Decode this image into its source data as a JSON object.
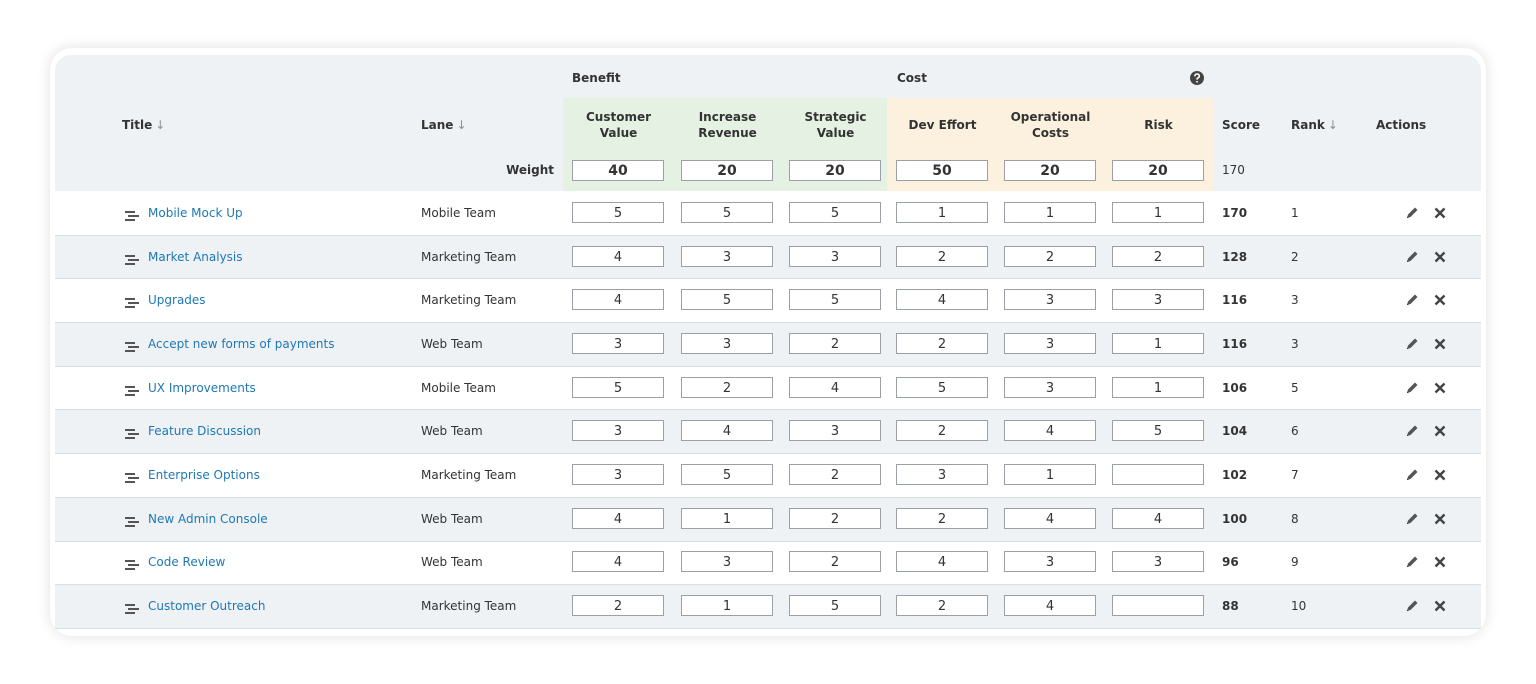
{
  "header": {
    "benefit": "Benefit",
    "cost": "Cost",
    "weight_label": "Weight"
  },
  "columns": {
    "title": "Title",
    "lane": "Lane",
    "criteria": [
      "Customer Value",
      "Increase Revenue",
      "Strategic Value",
      "Dev Effort",
      "Operational Costs",
      "Risk"
    ],
    "score": "Score",
    "rank": "Rank",
    "actions": "Actions"
  },
  "weights": [
    40,
    20,
    20,
    50,
    20,
    20
  ],
  "total_weight": 170,
  "rows": [
    {
      "title": "Mobile Mock Up",
      "lane": "Mobile Team",
      "scores": [
        5,
        5,
        5,
        1,
        1,
        1
      ],
      "score": 170,
      "rank": 1
    },
    {
      "title": "Market Analysis",
      "lane": "Marketing Team",
      "scores": [
        4,
        3,
        3,
        2,
        2,
        2
      ],
      "score": 128,
      "rank": 2
    },
    {
      "title": "Upgrades",
      "lane": "Marketing Team",
      "scores": [
        4,
        5,
        5,
        4,
        3,
        3
      ],
      "score": 116,
      "rank": 3
    },
    {
      "title": "Accept new forms of payments",
      "lane": "Web Team",
      "scores": [
        3,
        3,
        2,
        2,
        3,
        1
      ],
      "score": 116,
      "rank": 3
    },
    {
      "title": "UX Improvements",
      "lane": "Mobile Team",
      "scores": [
        5,
        2,
        4,
        5,
        3,
        1
      ],
      "score": 106,
      "rank": 5
    },
    {
      "title": "Feature Discussion",
      "lane": "Web Team",
      "scores": [
        3,
        4,
        3,
        2,
        4,
        5
      ],
      "score": 104,
      "rank": 6
    },
    {
      "title": "Enterprise Options",
      "lane": "Marketing Team",
      "scores": [
        3,
        5,
        2,
        3,
        1,
        null
      ],
      "score": 102,
      "rank": 7
    },
    {
      "title": "New Admin Console",
      "lane": "Web Team",
      "scores": [
        4,
        1,
        2,
        2,
        4,
        4
      ],
      "score": 100,
      "rank": 8
    },
    {
      "title": "Code Review",
      "lane": "Web Team",
      "scores": [
        4,
        3,
        2,
        4,
        3,
        3
      ],
      "score": 96,
      "rank": 9
    },
    {
      "title": "Customer Outreach",
      "lane": "Marketing Team",
      "scores": [
        2,
        1,
        5,
        2,
        4,
        null
      ],
      "score": 88,
      "rank": 10
    }
  ]
}
